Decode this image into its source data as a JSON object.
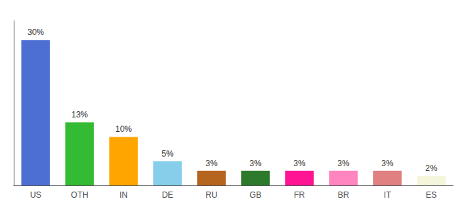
{
  "chart_data": {
    "type": "bar",
    "categories": [
      "US",
      "OTH",
      "IN",
      "DE",
      "RU",
      "GB",
      "FR",
      "BR",
      "IT",
      "ES"
    ],
    "values": [
      30,
      13,
      10,
      5,
      3,
      3,
      3,
      3,
      3,
      2
    ],
    "value_labels": [
      "30%",
      "13%",
      "10%",
      "5%",
      "3%",
      "3%",
      "3%",
      "3%",
      "3%",
      "2%"
    ],
    "colors": [
      "#4d6fd4",
      "#33bb33",
      "#ffa500",
      "#87ceeb",
      "#b5651d",
      "#2d7a2d",
      "#ff1493",
      "#ff85c0",
      "#e08080",
      "#f5f5dc"
    ],
    "ylim": [
      0,
      34
    ],
    "grid": false,
    "data_labels": true,
    "tick_labels": "x"
  }
}
